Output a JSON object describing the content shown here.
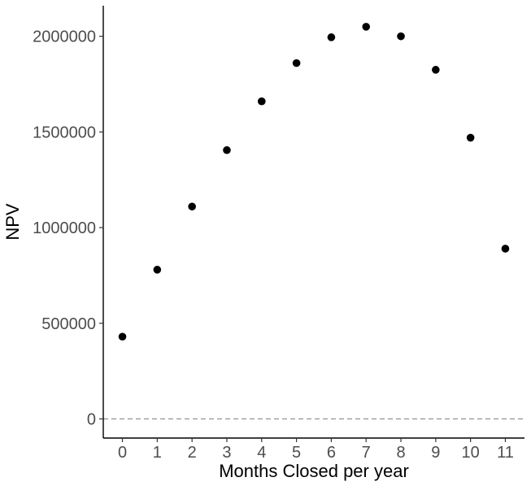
{
  "chart_data": {
    "type": "scatter",
    "title": "",
    "xlabel": "Months Closed per year",
    "ylabel": "NPV",
    "x": [
      0,
      1,
      2,
      3,
      4,
      5,
      6,
      7,
      8,
      9,
      10,
      11
    ],
    "y": [
      430000,
      780000,
      1110000,
      1405000,
      1660000,
      1860000,
      1995000,
      2050000,
      2000000,
      1825000,
      1470000,
      890000
    ],
    "xticks": [
      "0",
      "1",
      "2",
      "3",
      "4",
      "5",
      "6",
      "7",
      "8",
      "9",
      "10",
      "11"
    ],
    "yticks": [
      "0",
      "500000",
      "1000000",
      "1500000",
      "2000000"
    ],
    "ytick_values": [
      0,
      500000,
      1000000,
      1500000,
      2000000
    ],
    "xlim": [
      -0.55,
      11.55
    ],
    "ylim": [
      -100000,
      2160000
    ],
    "reference_line": {
      "y": 0,
      "style": "dashed",
      "color": "#999999"
    },
    "point_color": "#000000",
    "grid": false,
    "legend": "none"
  }
}
